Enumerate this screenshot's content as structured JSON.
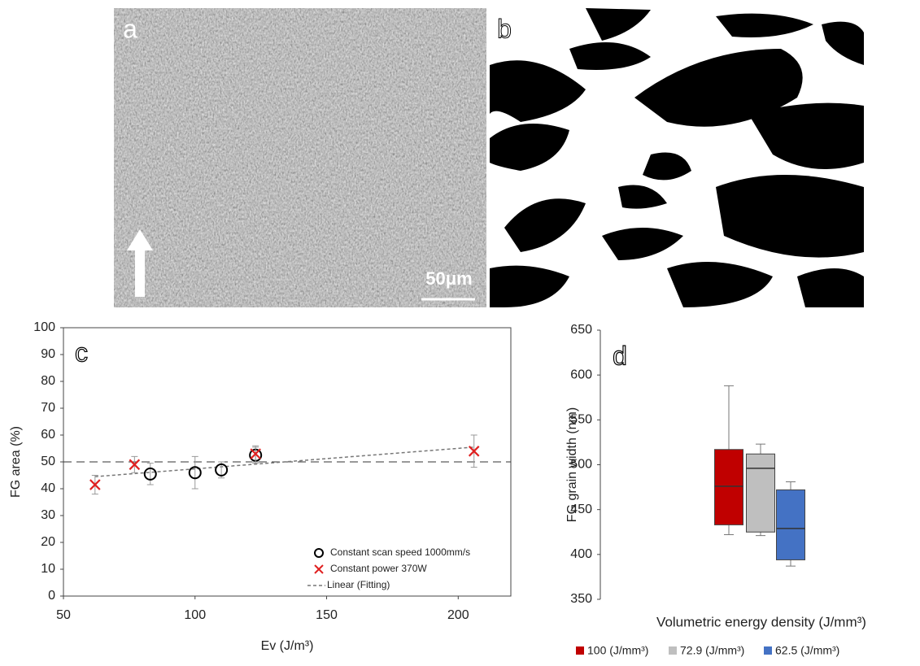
{
  "images": [
    {
      "label": "a",
      "scale_bar": "50μm"
    },
    {
      "label": "b"
    }
  ],
  "chart_data": [
    {
      "type": "scatter",
      "panel": "c",
      "x_label": "Ev (J/m³)",
      "y_label": "FG area (%)",
      "xlim": [
        50,
        220
      ],
      "xticks": [
        50,
        100,
        150,
        200
      ],
      "ylim": [
        0,
        100
      ],
      "yticks": [
        0,
        10,
        20,
        30,
        40,
        50,
        60,
        70,
        80,
        90,
        100
      ],
      "reference_line": 50,
      "series": [
        {
          "name": "Constant scan speed 1000mm/s",
          "color": "#000000",
          "marker": "circle",
          "x": [
            83,
            100,
            110,
            123
          ],
          "values": [
            45.5,
            46,
            47,
            52.5
          ],
          "errors": [
            4,
            6,
            3,
            3
          ]
        },
        {
          "name": "Constant power 370W",
          "color": "#e02020",
          "marker": "x",
          "x": [
            62,
            77,
            123,
            206
          ],
          "values": [
            41.5,
            49,
            53,
            54
          ],
          "errors": [
            3.5,
            3,
            3,
            6
          ]
        },
        {
          "name": "Linear (Fitting)",
          "color": "#777777",
          "line": "dashed",
          "x": [
            62,
            206
          ],
          "values": [
            44.5,
            55.5
          ]
        }
      ]
    },
    {
      "type": "box",
      "panel": "d",
      "x_label": "Volumetric energy density (J/mm³)",
      "y_label": "FG grain width (nm)",
      "ylim": [
        350,
        650
      ],
      "yticks": [
        350,
        400,
        450,
        500,
        550,
        600,
        650
      ],
      "series": [
        {
          "name": "100 (J/mm³)",
          "color": "#c00000",
          "whislo": 422,
          "q1": 433,
          "median": 476,
          "q3": 517,
          "whishi": 588
        },
        {
          "name": "72.9 (J/mm³)",
          "color": "#bfbfbf",
          "whislo": 421,
          "q1": 425,
          "median": 496,
          "q3": 512,
          "whishi": 523
        },
        {
          "name": "62.5 (J/mm³)",
          "color": "#4472c4",
          "whislo": 387,
          "q1": 394,
          "median": 429,
          "q3": 472,
          "whishi": 481
        }
      ]
    }
  ]
}
